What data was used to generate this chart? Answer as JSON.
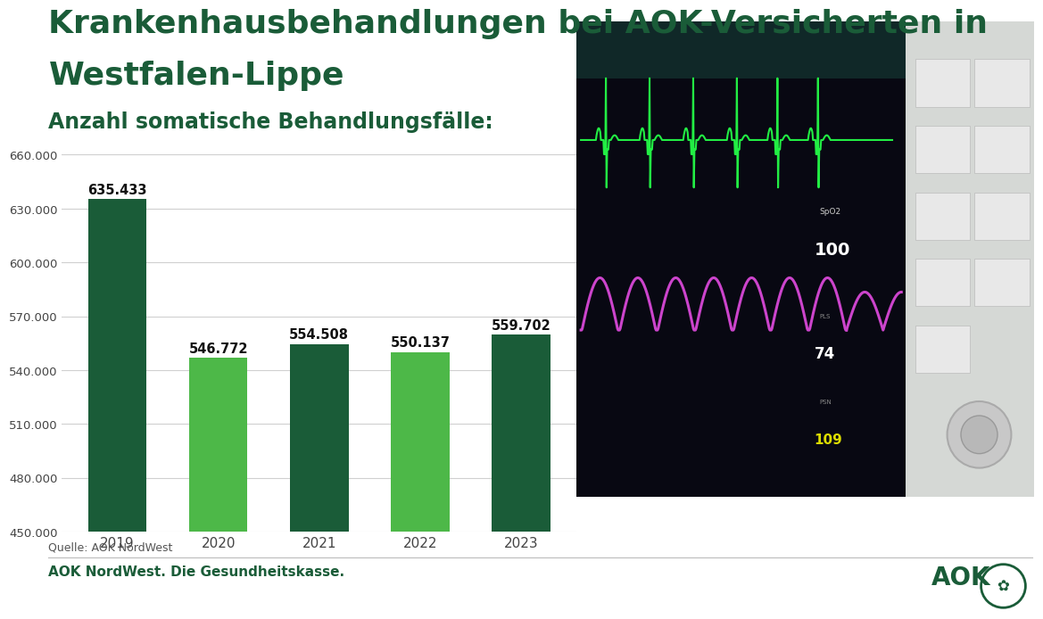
{
  "title_line1": "Krankenhausbehandlungen bei AOK-Versicherten in",
  "title_line2": "Westfalen-Lippe",
  "subtitle": "Anzahl somatische Behandlungsfälle:",
  "years": [
    "2019",
    "2020",
    "2021",
    "2022",
    "2023"
  ],
  "values": [
    635433,
    546772,
    554508,
    550137,
    559702
  ],
  "value_labels": [
    "635.433",
    "546.772",
    "554.508",
    "550.137",
    "559.702"
  ],
  "bar_colors": [
    "#1a5c38",
    "#4db848",
    "#1a5c38",
    "#4db848",
    "#1a5c38"
  ],
  "ylim_min": 450000,
  "ylim_max": 670000,
  "yticks": [
    450000,
    480000,
    510000,
    540000,
    570000,
    600000,
    630000,
    660000
  ],
  "ytick_labels": [
    "450.000",
    "480.000",
    "510.000",
    "540.000",
    "570.000",
    "600.000",
    "630.000",
    "660.000"
  ],
  "title_color": "#1a5c38",
  "subtitle_color": "#1a5c38",
  "source_text": "Quelle: AOK NordWest",
  "footer_text": "AOK NordWest. Die Gesundheitskasse.",
  "background_color": "#ffffff",
  "grid_color": "#d0d0d0",
  "tick_label_color": "#444444",
  "bar_label_color": "#111111",
  "title_fontsize": 26,
  "subtitle_fontsize": 17,
  "bar_label_fontsize": 10.5,
  "ytick_fontsize": 9.5,
  "xtick_fontsize": 11,
  "source_fontsize": 9,
  "footer_fontsize": 11,
  "img_bg_color": "#b8c4c8",
  "monitor_frame_color": "#d8d8d8",
  "screen_bg_color": "#0a0a18",
  "monitor_panel_color": "#e0e0e0"
}
